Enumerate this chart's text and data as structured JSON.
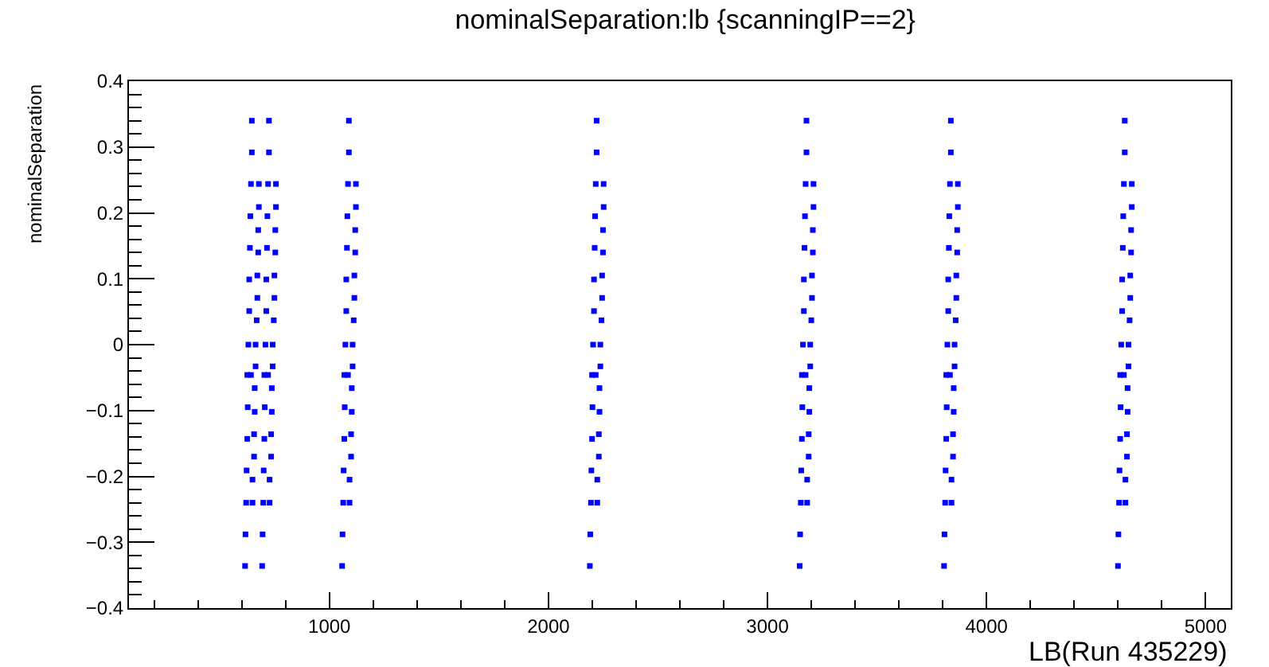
{
  "chart_data": {
    "type": "scatter",
    "title": "nominalSeparation:lb {scanningIP==2}",
    "xlabel": "LB(Run 435229)",
    "ylabel": "nominalSeparation",
    "xlim": [
      85,
      5115
    ],
    "xticks": [
      1000,
      2000,
      3000,
      4000,
      5000
    ],
    "ylim": [
      -0.4,
      0.4
    ],
    "yticks": [
      -0.4,
      -0.3,
      -0.2,
      -0.1,
      0,
      0.1,
      0.2,
      0.3,
      0.4
    ],
    "marker": "square",
    "series": [
      {
        "color": "#0000ff",
        "x": [
          646,
          646,
          642,
          678,
          678,
          639,
          675,
          637,
          675,
          671,
          634,
          671,
          634,
          668,
          630,
          663,
          663,
          625,
          642,
          659,
          627,
          659,
          656,
          625,
          656,
          622,
          649,
          620,
          649,
          617,
          615,
          724,
          724,
          720,
          756,
          756,
          717,
          753,
          715,
          753,
          749,
          712,
          749,
          712,
          746,
          708,
          741,
          741,
          703,
          720,
          737,
          705,
          737,
          734,
          703,
          734,
          700,
          727,
          698,
          727,
          695,
          693,
          1089,
          1089,
          1085,
          1121,
          1121,
          1082,
          1118,
          1080,
          1118,
          1114,
          1077,
          1114,
          1077,
          1111,
          1073,
          1106,
          1106,
          1068,
          1085,
          1102,
          1070,
          1102,
          1099,
          1068,
          1099,
          1065,
          1092,
          1063,
          1092,
          1060,
          1058,
          2220,
          2220,
          2216,
          2252,
          2252,
          2213,
          2249,
          2211,
          2249,
          2245,
          2208,
          2245,
          2208,
          2242,
          2204,
          2237,
          2237,
          2199,
          2216,
          2233,
          2201,
          2233,
          2230,
          2199,
          2230,
          2196,
          2223,
          2194,
          2223,
          2191,
          2189,
          3178,
          3178,
          3174,
          3210,
          3210,
          3171,
          3207,
          3169,
          3207,
          3203,
          3166,
          3203,
          3166,
          3200,
          3162,
          3195,
          3195,
          3157,
          3174,
          3191,
          3159,
          3191,
          3188,
          3157,
          3188,
          3154,
          3181,
          3152,
          3181,
          3149,
          3147,
          3837,
          3837,
          3833,
          3869,
          3869,
          3830,
          3866,
          3828,
          3866,
          3862,
          3825,
          3862,
          3825,
          3859,
          3821,
          3854,
          3854,
          3816,
          3833,
          3850,
          3818,
          3850,
          3847,
          3816,
          3847,
          3813,
          3840,
          3811,
          3840,
          3808,
          3806,
          4631,
          4631,
          4627,
          4663,
          4663,
          4624,
          4660,
          4622,
          4660,
          4656,
          4619,
          4656,
          4619,
          4653,
          4615,
          4648,
          4648,
          4610,
          4627,
          4644,
          4612,
          4644,
          4641,
          4610,
          4641,
          4607,
          4634,
          4605,
          4634,
          4602,
          4600
        ],
        "values": [
          0.34,
          0.292,
          0.244,
          0.244,
          0.209,
          0.195,
          0.174,
          0.147,
          0.14,
          0.105,
          0.099,
          0.071,
          0.051,
          0.037,
          0,
          0,
          -0.033,
          -0.046,
          -0.046,
          -0.066,
          -0.095,
          -0.102,
          -0.136,
          -0.143,
          -0.17,
          -0.191,
          -0.205,
          -0.24,
          -0.24,
          -0.288,
          -0.336,
          0.34,
          0.292,
          0.244,
          0.244,
          0.209,
          0.195,
          0.174,
          0.147,
          0.14,
          0.105,
          0.099,
          0.071,
          0.051,
          0.037,
          0,
          0,
          -0.033,
          -0.046,
          -0.046,
          -0.066,
          -0.095,
          -0.102,
          -0.136,
          -0.143,
          -0.17,
          -0.191,
          -0.205,
          -0.24,
          -0.24,
          -0.288,
          -0.336,
          0.34,
          0.292,
          0.244,
          0.244,
          0.209,
          0.195,
          0.174,
          0.147,
          0.14,
          0.105,
          0.099,
          0.071,
          0.051,
          0.037,
          0,
          0,
          -0.033,
          -0.046,
          -0.046,
          -0.066,
          -0.095,
          -0.102,
          -0.136,
          -0.143,
          -0.17,
          -0.191,
          -0.205,
          -0.24,
          -0.24,
          -0.288,
          -0.336,
          0.34,
          0.292,
          0.244,
          0.244,
          0.209,
          0.195,
          0.174,
          0.147,
          0.14,
          0.105,
          0.099,
          0.071,
          0.051,
          0.037,
          0,
          0,
          -0.033,
          -0.046,
          -0.046,
          -0.066,
          -0.095,
          -0.102,
          -0.136,
          -0.143,
          -0.17,
          -0.191,
          -0.205,
          -0.24,
          -0.24,
          -0.288,
          -0.336,
          0.34,
          0.292,
          0.244,
          0.244,
          0.209,
          0.195,
          0.174,
          0.147,
          0.14,
          0.105,
          0.099,
          0.071,
          0.051,
          0.037,
          0,
          0,
          -0.033,
          -0.046,
          -0.046,
          -0.066,
          -0.095,
          -0.102,
          -0.136,
          -0.143,
          -0.17,
          -0.191,
          -0.205,
          -0.24,
          -0.24,
          -0.288,
          -0.336,
          0.34,
          0.292,
          0.244,
          0.244,
          0.209,
          0.195,
          0.174,
          0.147,
          0.14,
          0.105,
          0.099,
          0.071,
          0.051,
          0.037,
          0,
          0,
          -0.033,
          -0.046,
          -0.046,
          -0.066,
          -0.095,
          -0.102,
          -0.136,
          -0.143,
          -0.17,
          -0.191,
          -0.205,
          -0.24,
          -0.24,
          -0.288,
          -0.336,
          0.34,
          0.292,
          0.244,
          0.244,
          0.209,
          0.195,
          0.174,
          0.147,
          0.14,
          0.105,
          0.099,
          0.071,
          0.051,
          0.037,
          0,
          0,
          -0.033,
          -0.046,
          -0.046,
          -0.066,
          -0.095,
          -0.102,
          -0.136,
          -0.143,
          -0.17,
          -0.191,
          -0.205,
          -0.24,
          -0.24,
          -0.288,
          -0.336
        ]
      }
    ]
  }
}
